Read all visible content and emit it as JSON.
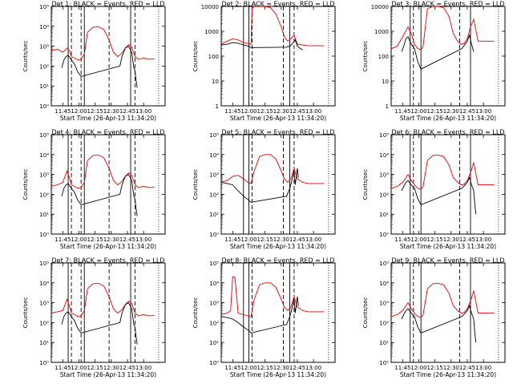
{
  "figure": {
    "background": "#ffffff",
    "events_color": "#000000",
    "lld_color": "#e00000",
    "x_tick_labels": [
      "11:45",
      "12:00",
      "12:15",
      "12:30",
      "12:45",
      "13:00"
    ],
    "x_tick_values_min": [
      705,
      720,
      735,
      750,
      765,
      780
    ],
    "x_range_min": [
      694.33,
      800
    ],
    "xlabel": "Start Time (26-Apr-13 11:34:20)",
    "ylabel": "Counts/sec"
  },
  "chart_data": [
    {
      "type": "line",
      "title": "Det 1: BLACK = Events, RED = LLD",
      "ylim": [
        1,
        100000
      ],
      "ytick_labels": [
        "10⁰",
        "10¹",
        "10²",
        "10³",
        "10⁴",
        "10⁵"
      ],
      "ytick_values": [
        1,
        10,
        100,
        1000,
        10000,
        100000
      ],
      "vlines_solid": [
        710,
        725,
        768
      ],
      "vlines_dashed": [
        713,
        722,
        748,
        772
      ],
      "series": [
        {
          "name": "LLD",
          "x": [
            694,
            700,
            705,
            709,
            711,
            713,
            716,
            719,
            722,
            725,
            728,
            733,
            738,
            743,
            748,
            752,
            756,
            760,
            763,
            766,
            769,
            772,
            775,
            780,
            785,
            790
          ],
          "y": [
            600,
            700,
            500,
            800,
            600,
            300,
            250,
            200,
            220,
            400,
            5000,
            9000,
            9500,
            7000,
            2000,
            500,
            300,
            450,
            800,
            1200,
            900,
            300,
            220,
            250,
            220,
            230
          ]
        },
        {
          "name": "Events",
          "x": [
            704,
            706,
            708,
            710,
            713,
            716,
            719,
            722,
            758,
            760,
            763,
            766,
            769,
            771,
            772,
            773,
            774
          ],
          "y": [
            80,
            200,
            300,
            350,
            200,
            120,
            50,
            30,
            100,
            300,
            800,
            1000,
            500,
            80,
            60,
            20,
            8
          ]
        }
      ]
    },
    {
      "type": "line",
      "title": "Det 2: BLACK = Events, RED = LLD",
      "ylim": [
        1,
        10000
      ],
      "ytick_labels": [
        "1",
        "10",
        "100",
        "1000",
        "10000"
      ],
      "ytick_values": [
        1,
        10,
        100,
        1000,
        10000
      ],
      "vlines_solid": [
        715,
        720,
        758
      ],
      "vlines_dashed": [
        723,
        752,
        762
      ],
      "series": [
        {
          "name": "LLD",
          "x": [
            694,
            700,
            705,
            710,
            715,
            719,
            722,
            723,
            725,
            728,
            735,
            740,
            745,
            750,
            753,
            756,
            759,
            762,
            765,
            770,
            775,
            790
          ],
          "y": [
            300,
            400,
            500,
            450,
            350,
            320,
            300,
            8000,
            10000,
            10000,
            10000,
            9000,
            5000,
            1500,
            600,
            400,
            500,
            700,
            300,
            280,
            260,
            260
          ]
        },
        {
          "name": "Events",
          "x": [
            694,
            700,
            705,
            710,
            715,
            720,
            722,
            755,
            758,
            760,
            763,
            765,
            768,
            770
          ],
          "y": [
            280,
            300,
            350,
            330,
            280,
            250,
            220,
            230,
            250,
            300,
            450,
            250,
            200,
            180
          ]
        }
      ]
    },
    {
      "type": "line",
      "title": "Det 3: BLACK = Events, RED = LLD",
      "ylim": [
        1,
        10000
      ],
      "ytick_labels": [
        "1",
        "10",
        "100",
        "1000",
        "10000"
      ],
      "ytick_values": [
        1,
        10,
        100,
        1000,
        10000
      ],
      "vlines_solid": [
        712,
        722,
        768
      ],
      "vlines_dashed": [
        715,
        758
      ],
      "series": [
        {
          "name": "LLD",
          "x": [
            694,
            700,
            705,
            710,
            713,
            716,
            719,
            722,
            724,
            728,
            733,
            738,
            743,
            748,
            752,
            756,
            759,
            762,
            765,
            768,
            771,
            775,
            790
          ],
          "y": [
            200,
            250,
            600,
            1500,
            800,
            300,
            200,
            180,
            250,
            8000,
            10000,
            10000,
            9000,
            4000,
            800,
            400,
            300,
            320,
            500,
            1500,
            3000,
            400,
            400
          ]
        },
        {
          "name": "Events",
          "x": [
            704,
            706,
            708,
            710,
            713,
            716,
            719,
            722,
            760,
            763,
            765,
            767,
            769,
            771
          ],
          "y": [
            150,
            250,
            500,
            600,
            300,
            200,
            60,
            30,
            200,
            300,
            400,
            700,
            300,
            150
          ]
        }
      ]
    },
    {
      "type": "line",
      "title": "Det 4: BLACK = Events, RED = LLD",
      "ylim": [
        1,
        100000
      ],
      "ytick_labels": [
        "10⁰",
        "10¹",
        "10²",
        "10³",
        "10⁴",
        "10⁵"
      ],
      "ytick_values": [
        1,
        10,
        100,
        1000,
        10000,
        100000
      ],
      "vlines_solid": [
        710,
        725,
        768
      ],
      "vlines_dashed": [
        713,
        722,
        748,
        772
      ],
      "series": [
        {
          "name": "LLD",
          "x": [
            694,
            700,
            705,
            709,
            711,
            713,
            716,
            719,
            722,
            725,
            728,
            733,
            738,
            743,
            748,
            752,
            756,
            760,
            763,
            766,
            769,
            772,
            775,
            780,
            785,
            790
          ],
          "y": [
            250,
            300,
            400,
            1500,
            700,
            300,
            250,
            200,
            220,
            400,
            5000,
            9000,
            9500,
            7000,
            2000,
            500,
            300,
            450,
            800,
            1200,
            900,
            300,
            220,
            250,
            220,
            230
          ]
        },
        {
          "name": "Events",
          "x": [
            704,
            706,
            708,
            710,
            713,
            716,
            719,
            722,
            758,
            760,
            763,
            766,
            769,
            771,
            772,
            773,
            774
          ],
          "y": [
            80,
            200,
            300,
            350,
            200,
            120,
            50,
            30,
            100,
            300,
            800,
            1000,
            500,
            80,
            60,
            20,
            8
          ]
        }
      ]
    },
    {
      "type": "line",
      "title": "Det 5: BLACK = Events, RED = LLD",
      "ylim": [
        1,
        100000
      ],
      "ytick_labels": [
        "10⁰",
        "10¹",
        "10²",
        "10³",
        "10⁴",
        "10⁵"
      ],
      "ytick_values": [
        1,
        10,
        100,
        1000,
        10000,
        100000
      ],
      "vlines_solid": [
        715,
        720,
        758
      ],
      "vlines_dashed": [
        723,
        752,
        762
      ],
      "series": [
        {
          "name": "LLD",
          "x": [
            694,
            700,
            705,
            710,
            715,
            719,
            722,
            725,
            730,
            735,
            740,
            745,
            750,
            753,
            756,
            759,
            762,
            765,
            770,
            775,
            790
          ],
          "y": [
            400,
            500,
            800,
            900,
            600,
            400,
            350,
            1500,
            8000,
            10000,
            10000,
            6000,
            1500,
            600,
            400,
            600,
            2000,
            600,
            400,
            350,
            350
          ]
        },
        {
          "name": "Events",
          "x": [
            694,
            700,
            705,
            710,
            715,
            720,
            722,
            755,
            758,
            760,
            762,
            763,
            765,
            766
          ],
          "y": [
            400,
            350,
            300,
            150,
            80,
            50,
            40,
            80,
            200,
            500,
            1500,
            300,
            2000,
            700
          ]
        }
      ]
    },
    {
      "type": "line",
      "title": "Det 6: BLACK = Events, RED = LLD",
      "ylim": [
        1,
        100000
      ],
      "ytick_labels": [
        "10⁰",
        "10¹",
        "10²",
        "10³",
        "10⁴",
        "10⁵"
      ],
      "ytick_values": [
        1,
        10,
        100,
        1000,
        10000,
        100000
      ],
      "vlines_solid": [
        712,
        722,
        768
      ],
      "vlines_dashed": [
        715,
        758
      ],
      "series": [
        {
          "name": "LLD",
          "x": [
            694,
            700,
            705,
            710,
            713,
            716,
            719,
            722,
            724,
            728,
            733,
            738,
            743,
            748,
            752,
            756,
            759,
            762,
            765,
            768,
            771,
            775,
            790
          ],
          "y": [
            200,
            250,
            400,
            1000,
            500,
            300,
            200,
            180,
            250,
            5000,
            9000,
            9500,
            8000,
            3000,
            700,
            400,
            300,
            320,
            500,
            1200,
            4000,
            300,
            300
          ]
        },
        {
          "name": "Events",
          "x": [
            704,
            706,
            708,
            710,
            713,
            716,
            719,
            722,
            760,
            763,
            765,
            767,
            769,
            771,
            772,
            773
          ],
          "y": [
            150,
            250,
            400,
            500,
            300,
            200,
            60,
            30,
            200,
            300,
            400,
            700,
            300,
            150,
            30,
            10
          ]
        }
      ]
    },
    {
      "type": "line",
      "title": "Det 7: BLACK = Events, RED = LLD",
      "ylim": [
        1,
        100000
      ],
      "ytick_labels": [
        "10⁰",
        "10¹",
        "10²",
        "10³",
        "10⁴",
        "10⁵"
      ],
      "ytick_values": [
        1,
        10,
        100,
        1000,
        10000,
        100000
      ],
      "vlines_solid": [
        710,
        725,
        768
      ],
      "vlines_dashed": [
        713,
        722,
        748,
        772
      ],
      "series": [
        {
          "name": "LLD",
          "x": [
            694,
            700,
            705,
            709,
            711,
            713,
            716,
            719,
            722,
            725,
            728,
            733,
            738,
            743,
            748,
            752,
            756,
            760,
            763,
            766,
            769,
            772,
            775,
            780,
            785,
            790
          ],
          "y": [
            300,
            350,
            400,
            1500,
            700,
            300,
            250,
            200,
            220,
            400,
            5000,
            9000,
            9500,
            7000,
            2000,
            500,
            300,
            450,
            800,
            1200,
            900,
            300,
            220,
            250,
            220,
            230
          ]
        },
        {
          "name": "Events",
          "x": [
            704,
            706,
            708,
            710,
            713,
            716,
            719,
            722,
            758,
            760,
            763,
            766,
            769,
            771,
            772,
            773,
            774
          ],
          "y": [
            80,
            200,
            300,
            350,
            200,
            120,
            50,
            30,
            100,
            300,
            800,
            1000,
            500,
            80,
            60,
            20,
            8
          ]
        }
      ]
    },
    {
      "type": "line",
      "title": "Det 8: BLACK = Events, RED = LLD",
      "ylim": [
        1,
        100000
      ],
      "ytick_labels": [
        "10⁰",
        "10¹",
        "10²",
        "10³",
        "10⁴",
        "10⁵"
      ],
      "ytick_values": [
        1,
        10,
        100,
        1000,
        10000,
        100000
      ],
      "vlines_solid": [
        715,
        720,
        758
      ],
      "vlines_dashed": [
        723,
        752,
        762
      ],
      "series": [
        {
          "name": "LLD",
          "x": [
            694,
            700,
            703,
            705,
            707,
            710,
            715,
            719,
            722,
            725,
            730,
            735,
            740,
            745,
            750,
            753,
            756,
            759,
            762,
            765,
            770,
            775,
            790
          ],
          "y": [
            250,
            300,
            400,
            20000,
            20000,
            300,
            250,
            220,
            200,
            1500,
            8000,
            10000,
            10000,
            6000,
            1500,
            600,
            400,
            600,
            2000,
            600,
            400,
            350,
            350
          ]
        },
        {
          "name": "Events",
          "x": [
            694,
            700,
            705,
            710,
            715,
            720,
            722,
            755,
            758,
            760,
            762,
            763,
            765,
            766
          ],
          "y": [
            200,
            180,
            150,
            100,
            60,
            40,
            30,
            80,
            200,
            500,
            1500,
            300,
            2000,
            700
          ]
        }
      ]
    },
    {
      "type": "line",
      "title": "Det 9: BLACK = Events, RED = LLD",
      "ylim": [
        1,
        100000
      ],
      "ytick_labels": [
        "10⁰",
        "10¹",
        "10²",
        "10³",
        "10⁴",
        "10⁵"
      ],
      "ytick_values": [
        1,
        10,
        100,
        1000,
        10000,
        100000
      ],
      "vlines_solid": [
        712,
        722,
        768
      ],
      "vlines_dashed": [
        715,
        758
      ],
      "series": [
        {
          "name": "LLD",
          "x": [
            694,
            700,
            705,
            710,
            713,
            716,
            719,
            722,
            724,
            728,
            733,
            738,
            743,
            748,
            752,
            756,
            759,
            762,
            765,
            768,
            771,
            775,
            790
          ],
          "y": [
            200,
            250,
            400,
            1000,
            500,
            300,
            200,
            180,
            250,
            5000,
            9000,
            9500,
            8000,
            3000,
            700,
            400,
            300,
            320,
            500,
            1200,
            4000,
            300,
            300
          ]
        },
        {
          "name": "Events",
          "x": [
            704,
            706,
            708,
            710,
            713,
            716,
            719,
            722,
            760,
            763,
            765,
            767,
            769,
            771,
            772,
            773
          ],
          "y": [
            150,
            250,
            400,
            500,
            300,
            200,
            60,
            30,
            200,
            300,
            400,
            700,
            300,
            150,
            30,
            10
          ]
        }
      ]
    }
  ]
}
